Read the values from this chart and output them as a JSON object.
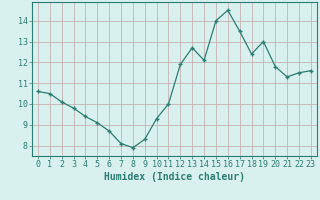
{
  "x": [
    0,
    1,
    2,
    3,
    4,
    5,
    6,
    7,
    8,
    9,
    10,
    11,
    12,
    13,
    14,
    15,
    16,
    17,
    18,
    19,
    20,
    21,
    22,
    23
  ],
  "y": [
    10.6,
    10.5,
    10.1,
    9.8,
    9.4,
    9.1,
    8.7,
    8.1,
    7.9,
    8.3,
    9.3,
    10.0,
    11.9,
    12.7,
    12.1,
    14.0,
    14.5,
    13.5,
    12.4,
    13.0,
    11.8,
    11.3,
    11.5,
    11.6
  ],
  "xlim": [
    -0.5,
    23.5
  ],
  "ylim": [
    7.5,
    14.9
  ],
  "yticks": [
    8,
    9,
    10,
    11,
    12,
    13,
    14
  ],
  "xticks": [
    0,
    1,
    2,
    3,
    4,
    5,
    6,
    7,
    8,
    9,
    10,
    11,
    12,
    13,
    14,
    15,
    16,
    17,
    18,
    19,
    20,
    21,
    22,
    23
  ],
  "xlabel": "Humidex (Indice chaleur)",
  "line_color": "#2e7d72",
  "marker_color": "#2e7d72",
  "bg_color": "#d8f0ee",
  "grid_color": "#c0a8a8",
  "axis_color": "#2e7d72",
  "tick_color": "#2e7d72",
  "label_color": "#2e7d72",
  "xlabel_fontsize": 7,
  "tick_fontsize": 6
}
